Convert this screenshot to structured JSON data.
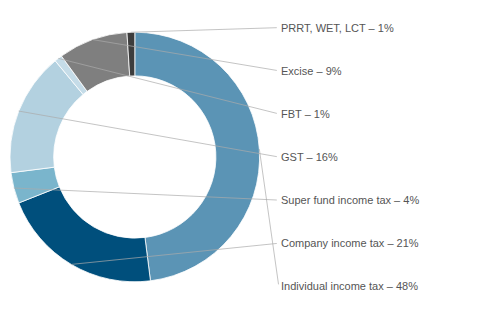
{
  "chart_data": {
    "type": "pie",
    "categories": [
      "Individual income tax – 48%",
      "Company income tax – 21%",
      "Super fund income tax – 4%",
      "GST – 16%",
      "FBT – 1%",
      "Excise – 9%",
      "PRRT, WET, LCT – 1%"
    ],
    "values": [
      48,
      21,
      4,
      16,
      1,
      9,
      1
    ],
    "colors": [
      "#5b94b5",
      "#004f7c",
      "#7ab5cc",
      "#b3d1e0",
      "#c5dce8",
      "#7f7f7f",
      "#3d3d3d"
    ]
  }
}
